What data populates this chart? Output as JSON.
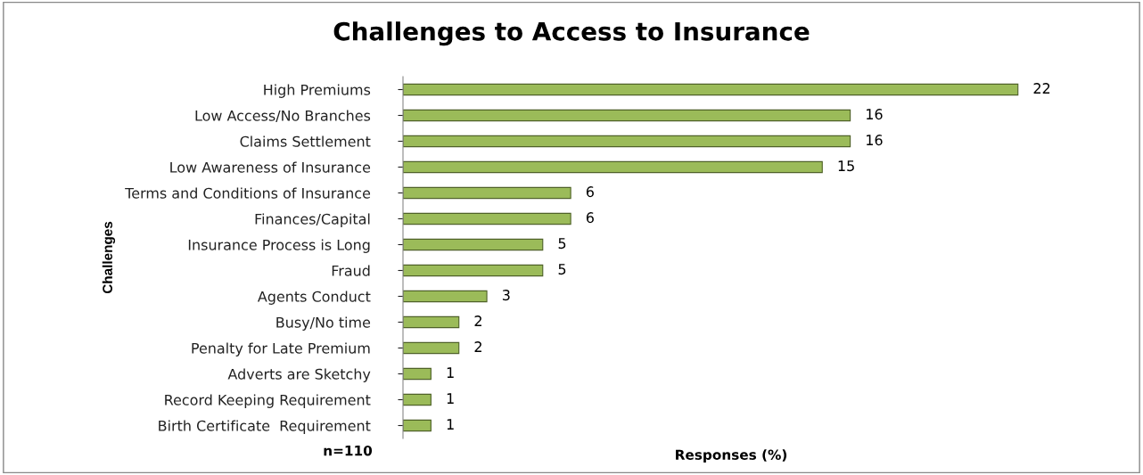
{
  "chart_data": {
    "type": "bar",
    "orientation": "horizontal",
    "title": "Challenges to Access to Insurance",
    "xlabel": "Responses (%)",
    "ylabel": "Challenges",
    "categories": [
      "High Premiums",
      "Low Access/No Branches",
      "Claims Settlement",
      "Low Awareness of Insurance",
      "Terms and Conditions of Insurance",
      "Finances/Capital",
      "Insurance Process is Long",
      "Fraud",
      "Agents Conduct",
      "Busy/No time",
      "Penalty for Late Premium",
      "Adverts are Sketchy",
      "Record Keeping Requirement",
      "Birth Certificate  Requirement"
    ],
    "values": [
      22,
      16,
      16,
      15,
      6,
      6,
      5,
      5,
      3,
      2,
      2,
      1,
      1,
      1
    ],
    "color": "#9bbb59",
    "data_labels": true,
    "tick_labels": "y",
    "grid": false,
    "legend": false,
    "annotations": [
      "n=110"
    ]
  }
}
